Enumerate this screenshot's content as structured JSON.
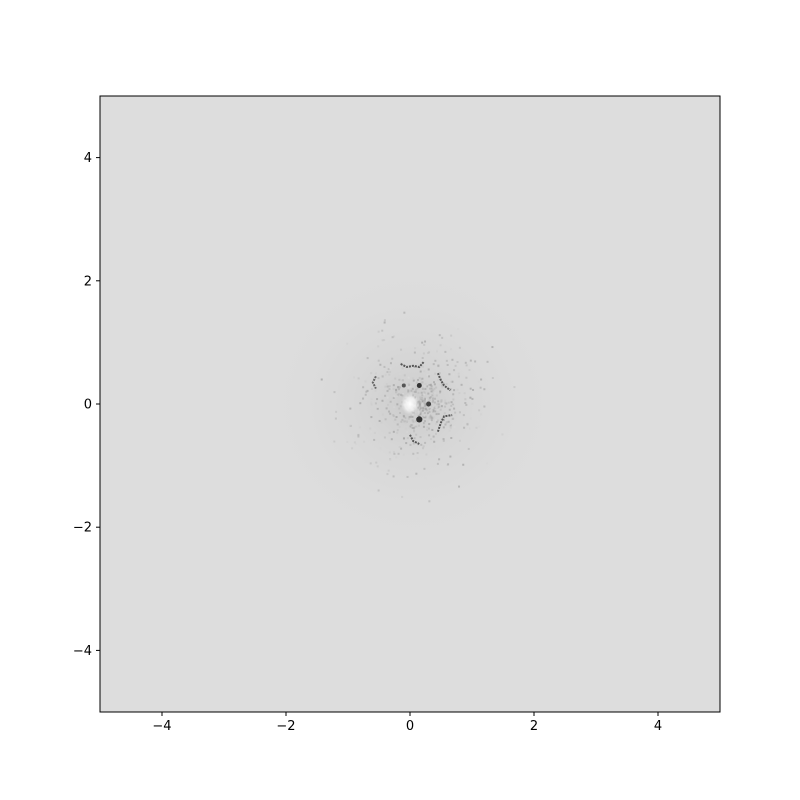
{
  "chart_data": {
    "type": "heatmap",
    "title": "",
    "xlabel": "",
    "ylabel": "",
    "xlim": [
      -5,
      5
    ],
    "ylim": [
      -5,
      5
    ],
    "grid": false,
    "colormap": "gray",
    "background_value_color": "#dddddd",
    "x_ticks": [
      {
        "value": -4,
        "label": "−4"
      },
      {
        "value": -2,
        "label": "−2"
      },
      {
        "value": 0,
        "label": "0"
      },
      {
        "value": 2,
        "label": "2"
      },
      {
        "value": 4,
        "label": "4"
      }
    ],
    "y_ticks": [
      {
        "value": -4,
        "label": "−4"
      },
      {
        "value": -2,
        "label": "−2"
      },
      {
        "value": 0,
        "label": "0"
      },
      {
        "value": 2,
        "label": "2"
      },
      {
        "value": 4,
        "label": "4"
      }
    ],
    "features": [
      {
        "kind": "bright_spot",
        "x": 0.0,
        "y": 0.0,
        "r": 0.15,
        "color": "#ffffff"
      },
      {
        "kind": "dark_mark",
        "x": 0.15,
        "y": 0.3,
        "r": 0.04,
        "color": "#333333"
      },
      {
        "kind": "dark_mark",
        "x": 0.15,
        "y": -0.25,
        "r": 0.05,
        "color": "#333333"
      },
      {
        "kind": "dark_mark",
        "x": 0.3,
        "y": 0.0,
        "r": 0.04,
        "color": "#444444"
      },
      {
        "kind": "dark_mark",
        "x": -0.1,
        "y": 0.3,
        "r": 0.03,
        "color": "#555555"
      }
    ],
    "curves": [
      {
        "color": "#555555",
        "points": [
          [
            -0.15,
            0.65
          ],
          [
            -0.05,
            0.6
          ],
          [
            0.05,
            0.62
          ],
          [
            0.15,
            0.6
          ],
          [
            0.22,
            0.68
          ]
        ]
      },
      {
        "color": "#555555",
        "points": [
          [
            0.45,
            0.5
          ],
          [
            0.5,
            0.38
          ],
          [
            0.55,
            0.3
          ],
          [
            0.65,
            0.22
          ]
        ]
      },
      {
        "color": "#555555",
        "points": [
          [
            0.45,
            -0.45
          ],
          [
            0.5,
            -0.3
          ],
          [
            0.55,
            -0.2
          ],
          [
            0.68,
            -0.18
          ]
        ]
      },
      {
        "color": "#555555",
        "points": [
          [
            0.0,
            -0.5
          ],
          [
            0.05,
            -0.6
          ],
          [
            0.15,
            -0.65
          ]
        ]
      },
      {
        "color": "#666666",
        "points": [
          [
            -0.55,
            0.45
          ],
          [
            -0.6,
            0.35
          ],
          [
            -0.55,
            0.25
          ]
        ]
      }
    ]
  }
}
